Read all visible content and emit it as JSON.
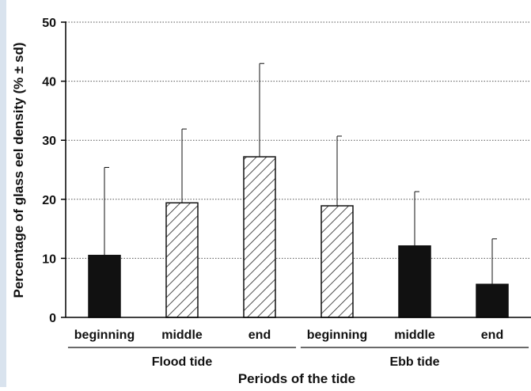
{
  "chart_data": {
    "type": "bar",
    "categories": [
      "beginning",
      "middle",
      "end",
      "beginning",
      "middle",
      "end"
    ],
    "values": [
      10.5,
      19.4,
      27.2,
      18.9,
      12.1,
      5.6
    ],
    "sd_upper": [
      25.4,
      31.9,
      43.0,
      30.7,
      21.3,
      13.3
    ],
    "bar_styles": [
      "solid",
      "hatched",
      "hatched",
      "hatched",
      "solid",
      "solid"
    ],
    "groups": [
      {
        "label": "Flood tide",
        "categories": [
          0,
          1,
          2
        ]
      },
      {
        "label": "Ebb tide",
        "categories": [
          3,
          4,
          5
        ]
      }
    ],
    "title": "",
    "xlabel": "Periods of the tide",
    "ylabel": "Percentage of glass eel density (% ± sd)",
    "ylim": [
      0,
      50
    ],
    "yticks": [
      0,
      10,
      20,
      30,
      40,
      50
    ],
    "grid": "horizontal dotted",
    "colors": {
      "solid": "#111111",
      "hatch": "#222222",
      "axis": "#000000"
    }
  }
}
